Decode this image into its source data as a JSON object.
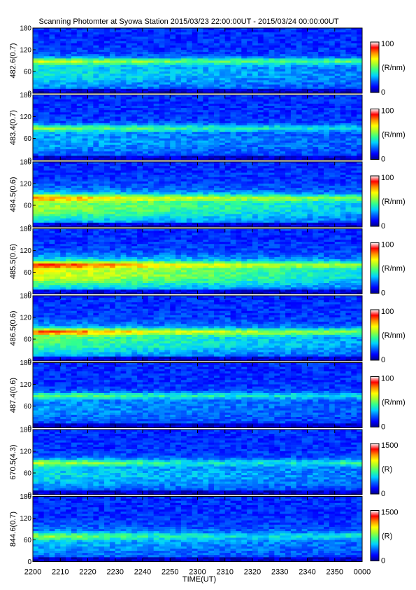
{
  "chart_data": {
    "type": "heatmap",
    "title": "Scanning Photomter at Syowa Station 2015/03/23 22:00:00UT - 2015/03/24 00:00:00UT",
    "xlabel": "TIME(UT)",
    "x_ticks": [
      "2200",
      "2210",
      "2220",
      "2230",
      "2240",
      "2250",
      "2300",
      "2310",
      "2320",
      "2330",
      "2340",
      "2350",
      "0000"
    ],
    "y_ticks": [
      "0",
      "60",
      "120",
      "180"
    ],
    "ylim": [
      0,
      180
    ],
    "colormap": [
      "#00008c",
      "#0000ff",
      "#0060ff",
      "#00d0ff",
      "#30ff90",
      "#a0ff30",
      "#ffff00",
      "#ff9000",
      "#ff0000",
      "#ffffff"
    ],
    "panels": [
      {
        "ylabel": "482.6(0.7)",
        "cbar_max": "100",
        "cbar_min": "0",
        "cbar_unit": "(R/nm)",
        "band_level": [
          62,
          56,
          50,
          48,
          46,
          45,
          44,
          44,
          44,
          44,
          45,
          48
        ],
        "band_center_deg": 88,
        "diffuse_level": 22
      },
      {
        "ylabel": "483.4(0.7)",
        "cbar_max": "100",
        "cbar_min": "0",
        "cbar_unit": "(R/nm)",
        "band_level": [
          55,
          50,
          46,
          44,
          42,
          40,
          38,
          36,
          34,
          33,
          32,
          30
        ],
        "band_center_deg": 88,
        "diffuse_level": 14
      },
      {
        "ylabel": "484.5(0.6)",
        "cbar_max": "100",
        "cbar_min": "0",
        "cbar_unit": "(R/nm)",
        "band_level": [
          62,
          58,
          52,
          48,
          45,
          43,
          42,
          41,
          40,
          40,
          41,
          42
        ],
        "band_center_deg": 80,
        "diffuse_level": 40
      },
      {
        "ylabel": "485.5(0.6)",
        "cbar_max": "100",
        "cbar_min": "0",
        "cbar_unit": "(R/nm)",
        "band_level": [
          70,
          64,
          58,
          52,
          48,
          45,
          44,
          43,
          42,
          42,
          42,
          44
        ],
        "band_center_deg": 80,
        "diffuse_level": 48
      },
      {
        "ylabel": "486.5(0.6)",
        "cbar_max": "100",
        "cbar_min": "0",
        "cbar_unit": "(R/nm)",
        "band_level": [
          82,
          76,
          70,
          64,
          58,
          54,
          52,
          50,
          48,
          48,
          48,
          50
        ],
        "band_center_deg": 80,
        "diffuse_level": 32
      },
      {
        "ylabel": "487.4(0.6)",
        "cbar_max": "100",
        "cbar_min": "0",
        "cbar_unit": "(R/nm)",
        "band_level": [
          50,
          46,
          42,
          40,
          38,
          36,
          35,
          34,
          33,
          33,
          33,
          34
        ],
        "band_center_deg": 88,
        "diffuse_level": 12
      },
      {
        "ylabel": "670.5(4.3)",
        "cbar_max": "1500",
        "cbar_min": "0",
        "cbar_unit": "(R)",
        "band_level": [
          55,
          52,
          48,
          40,
          32,
          28,
          26,
          26,
          28,
          30,
          34,
          40
        ],
        "band_center_deg": 88,
        "diffuse_level": 20
      },
      {
        "ylabel": "844.6(0.7)",
        "cbar_max": "1500",
        "cbar_min": "0",
        "cbar_unit": "(R)",
        "band_level": [
          45,
          40,
          34,
          30,
          26,
          24,
          22,
          22,
          22,
          24,
          28,
          34
        ],
        "band_center_deg": 70,
        "diffuse_level": 16
      }
    ]
  }
}
